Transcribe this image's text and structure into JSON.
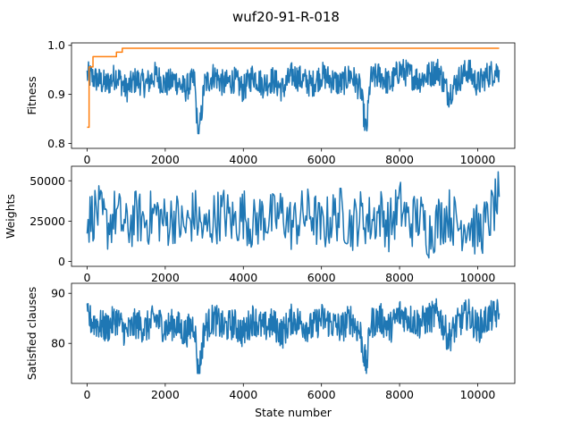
{
  "figure": {
    "title": "wuf20-91-R-018"
  },
  "chart_data": [
    {
      "type": "line",
      "title": "",
      "xlabel": "",
      "ylabel": "Fitness",
      "xlim": [
        -400,
        10950
      ],
      "ylim": [
        0.79,
        1.005
      ],
      "xticks": [
        0,
        2000,
        4000,
        6000,
        8000,
        10000
      ],
      "xtick_labels": [
        "0",
        "2000",
        "4000",
        "6000",
        "8000",
        "10000"
      ],
      "yticks": [
        0.8,
        0.9,
        1.0
      ],
      "ytick_labels": [
        "0.8",
        "0.9",
        "1.0"
      ],
      "series": [
        {
          "color": "#1f77b4",
          "x": [
            0,
            250,
            500,
            750,
            1000,
            1250,
            1500,
            1750,
            2000,
            2250,
            2500,
            2750,
            2850,
            3000,
            3250,
            3500,
            3750,
            4000,
            4250,
            4500,
            4750,
            5000,
            5250,
            5500,
            5750,
            6000,
            6250,
            6500,
            6750,
            7000,
            7150,
            7250,
            7500,
            7750,
            8000,
            8250,
            8500,
            8750,
            9000,
            9250,
            9500,
            9750,
            10000,
            10250,
            10550
          ],
          "y": [
            0.94,
            0.93,
            0.92,
            0.94,
            0.91,
            0.93,
            0.92,
            0.94,
            0.92,
            0.93,
            0.91,
            0.93,
            0.8,
            0.92,
            0.94,
            0.92,
            0.93,
            0.91,
            0.94,
            0.92,
            0.93,
            0.91,
            0.94,
            0.93,
            0.92,
            0.94,
            0.93,
            0.92,
            0.94,
            0.91,
            0.82,
            0.93,
            0.94,
            0.92,
            0.95,
            0.94,
            0.93,
            0.94,
            0.95,
            0.9,
            0.93,
            0.95,
            0.92,
            0.94,
            0.95
          ]
        },
        {
          "color": "#ff7f0e",
          "x": [
            0,
            50,
            50,
            150,
            150,
            750,
            750,
            900,
            900,
            10550
          ],
          "y": [
            0.833,
            0.833,
            0.956,
            0.956,
            0.977,
            0.977,
            0.986,
            0.986,
            0.994,
            0.994
          ]
        }
      ]
    },
    {
      "type": "line",
      "title": "",
      "xlabel": "",
      "ylabel": "Weights",
      "xlim": [
        -400,
        10950
      ],
      "ylim": [
        -3000,
        59000
      ],
      "xticks": [
        0,
        2000,
        4000,
        6000,
        8000,
        10000
      ],
      "xtick_labels": [
        "0",
        "2000",
        "4000",
        "6000",
        "8000",
        "10000"
      ],
      "yticks": [
        0,
        25000,
        50000
      ],
      "ytick_labels": [
        "0",
        "25000",
        "50000"
      ],
      "series": [
        {
          "color": "#1f77b4",
          "x": [
            0,
            250,
            500,
            750,
            1000,
            1250,
            1500,
            1750,
            2000,
            2250,
            2500,
            2750,
            3000,
            3250,
            3500,
            3750,
            4000,
            4250,
            4500,
            4750,
            5000,
            5250,
            5500,
            5750,
            6000,
            6250,
            6500,
            6750,
            7000,
            7250,
            7500,
            7750,
            8000,
            8250,
            8500,
            8750,
            9000,
            9250,
            9500,
            9750,
            10000,
            10250,
            10550
          ],
          "y": [
            25000,
            32000,
            22000,
            30000,
            20000,
            28000,
            25000,
            30000,
            24000,
            28000,
            20000,
            30000,
            18000,
            27000,
            30000,
            24000,
            30000,
            22000,
            28000,
            26000,
            30000,
            22000,
            28000,
            30000,
            20000,
            27000,
            30000,
            22000,
            28000,
            25000,
            30000,
            22000,
            35000,
            24000,
            28000,
            18000,
            25000,
            30000,
            22000,
            25000,
            18000,
            24000,
            40000
          ]
        }
      ]
    },
    {
      "type": "line",
      "title": "",
      "xlabel": "State number",
      "ylabel": "Satisfied clauses",
      "xlim": [
        -400,
        10950
      ],
      "ylim": [
        72,
        92
      ],
      "xticks": [
        0,
        2000,
        4000,
        6000,
        8000,
        10000
      ],
      "xtick_labels": [
        "0",
        "2000",
        "4000",
        "6000",
        "8000",
        "10000"
      ],
      "yticks": [
        80,
        90
      ],
      "ytick_labels": [
        "80",
        "90"
      ],
      "series": [
        {
          "color": "#1f77b4",
          "x": [
            0,
            250,
            500,
            750,
            1000,
            1250,
            1500,
            1750,
            2000,
            2250,
            2500,
            2750,
            2850,
            3000,
            3250,
            3500,
            3750,
            4000,
            4250,
            4500,
            4750,
            5000,
            5250,
            5500,
            5750,
            6000,
            6250,
            6500,
            6750,
            7000,
            7150,
            7250,
            7500,
            7750,
            8000,
            8250,
            8500,
            8750,
            9000,
            9250,
            9500,
            9750,
            10000,
            10250,
            10550
          ],
          "y": [
            85,
            84,
            83,
            85,
            82,
            84,
            83,
            85,
            83,
            84,
            82,
            84,
            73,
            83,
            85,
            83,
            84,
            82,
            85,
            83,
            84,
            82,
            85,
            84,
            83,
            85,
            84,
            83,
            85,
            82,
            75,
            84,
            85,
            83,
            86,
            85,
            84,
            85,
            86,
            81,
            84,
            86,
            83,
            85,
            86
          ]
        }
      ]
    }
  ]
}
